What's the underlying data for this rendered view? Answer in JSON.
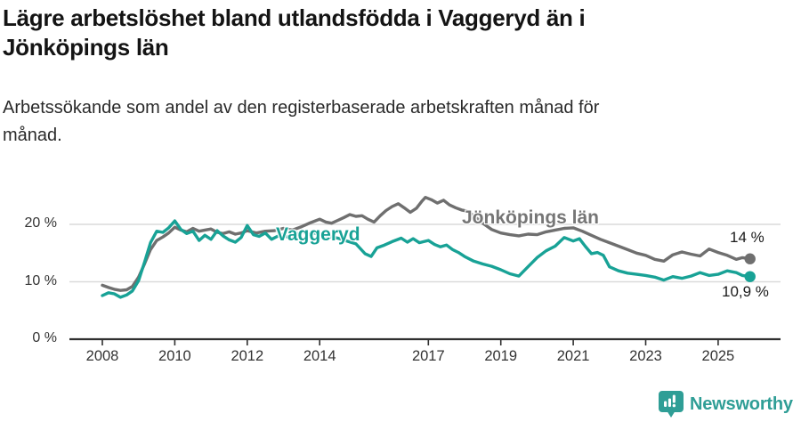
{
  "header": {
    "title_lines": [
      "Lägre arbetslöshet bland utlandsfödda i Vaggeryd än i",
      "Jönköpings län"
    ],
    "subtitle_lines": [
      "Arbetssökande som andel av den registerbaserade arbetskraften månad för",
      "månad."
    ]
  },
  "chart_data": {
    "type": "line",
    "title": "Lägre arbetslöshet bland utlandsfödda i Vaggeryd än i Jönköpings län",
    "subtitle": "Arbetssökande som andel av den registerbaserade arbetskraften månad för månad.",
    "unit": "%",
    "grid": "horizontal",
    "legend_position": "inline-labels",
    "x_axis": {
      "ticks": [
        {
          "year": 2008,
          "label": "2008"
        },
        {
          "year": 2010,
          "label": "2010"
        },
        {
          "year": 2012,
          "label": "2012"
        },
        {
          "year": 2014,
          "label": "2014"
        },
        {
          "year": 2017,
          "label": "2017"
        },
        {
          "year": 2019,
          "label": "2019"
        },
        {
          "year": 2021,
          "label": "2021"
        },
        {
          "year": 2023,
          "label": "2023"
        },
        {
          "year": 2025,
          "label": "2025"
        }
      ],
      "range": [
        2008.0,
        2025.9
      ]
    },
    "y_axis": {
      "ticks": [
        {
          "value": 0,
          "label": "0 %"
        },
        {
          "value": 10,
          "label": "10 %"
        },
        {
          "value": 20,
          "label": "20 %"
        }
      ],
      "range": [
        0,
        26
      ]
    },
    "series": [
      {
        "name": "Jönköpings län",
        "color": "#6f6f6f",
        "end_label": "14 %",
        "end_value": 14.0,
        "points": [
          [
            2008.0,
            9.4
          ],
          [
            2008.17,
            9.0
          ],
          [
            2008.33,
            8.7
          ],
          [
            2008.5,
            8.5
          ],
          [
            2008.67,
            8.6
          ],
          [
            2008.83,
            9.2
          ],
          [
            2009.0,
            10.8
          ],
          [
            2009.17,
            13.2
          ],
          [
            2009.33,
            15.6
          ],
          [
            2009.5,
            17.2
          ],
          [
            2009.67,
            17.8
          ],
          [
            2009.83,
            18.5
          ],
          [
            2010.0,
            19.5
          ],
          [
            2010.17,
            19.0
          ],
          [
            2010.33,
            18.7
          ],
          [
            2010.5,
            19.3
          ],
          [
            2010.67,
            18.8
          ],
          [
            2010.83,
            19.0
          ],
          [
            2011.0,
            19.2
          ],
          [
            2011.17,
            18.6
          ],
          [
            2011.33,
            18.4
          ],
          [
            2011.5,
            18.7
          ],
          [
            2011.67,
            18.3
          ],
          [
            2011.83,
            18.5
          ],
          [
            2012.0,
            18.9
          ],
          [
            2012.25,
            18.5
          ],
          [
            2012.5,
            18.8
          ],
          [
            2012.75,
            18.9
          ],
          [
            2013.0,
            19.3
          ],
          [
            2013.25,
            19.0
          ],
          [
            2013.5,
            19.6
          ],
          [
            2013.75,
            20.3
          ],
          [
            2014.0,
            20.9
          ],
          [
            2014.17,
            20.4
          ],
          [
            2014.33,
            20.2
          ],
          [
            2014.5,
            20.7
          ],
          [
            2014.67,
            21.2
          ],
          [
            2014.83,
            21.7
          ],
          [
            2015.0,
            21.4
          ],
          [
            2015.17,
            21.5
          ],
          [
            2015.33,
            20.9
          ],
          [
            2015.5,
            20.4
          ],
          [
            2015.67,
            21.5
          ],
          [
            2015.83,
            22.4
          ],
          [
            2016.0,
            23.1
          ],
          [
            2016.17,
            23.6
          ],
          [
            2016.33,
            22.9
          ],
          [
            2016.5,
            22.1
          ],
          [
            2016.67,
            22.8
          ],
          [
            2016.83,
            24.1
          ],
          [
            2016.92,
            24.7
          ],
          [
            2017.08,
            24.3
          ],
          [
            2017.25,
            23.7
          ],
          [
            2017.42,
            24.2
          ],
          [
            2017.58,
            23.4
          ],
          [
            2017.75,
            22.9
          ],
          [
            2017.92,
            22.5
          ],
          [
            2018.08,
            22.3
          ],
          [
            2018.25,
            21.5
          ],
          [
            2018.5,
            20.2
          ],
          [
            2018.75,
            19.1
          ],
          [
            2019.0,
            18.5
          ],
          [
            2019.25,
            18.2
          ],
          [
            2019.5,
            18.0
          ],
          [
            2019.75,
            18.3
          ],
          [
            2020.0,
            18.2
          ],
          [
            2020.25,
            18.7
          ],
          [
            2020.5,
            19.0
          ],
          [
            2020.75,
            19.3
          ],
          [
            2021.0,
            19.4
          ],
          [
            2021.25,
            18.8
          ],
          [
            2021.5,
            18.1
          ],
          [
            2021.75,
            17.4
          ],
          [
            2022.0,
            16.8
          ],
          [
            2022.25,
            16.2
          ],
          [
            2022.5,
            15.6
          ],
          [
            2022.75,
            15.0
          ],
          [
            2023.0,
            14.6
          ],
          [
            2023.25,
            13.9
          ],
          [
            2023.5,
            13.6
          ],
          [
            2023.75,
            14.7
          ],
          [
            2024.0,
            15.2
          ],
          [
            2024.25,
            14.8
          ],
          [
            2024.5,
            14.5
          ],
          [
            2024.75,
            15.7
          ],
          [
            2025.0,
            15.1
          ],
          [
            2025.25,
            14.6
          ],
          [
            2025.5,
            13.9
          ],
          [
            2025.67,
            14.2
          ],
          [
            2025.88,
            14.0
          ]
        ]
      },
      {
        "name": "Vaggeryd",
        "color": "#18a296",
        "end_label": "10,9 %",
        "end_value": 10.9,
        "points": [
          [
            2008.0,
            7.6
          ],
          [
            2008.17,
            8.1
          ],
          [
            2008.33,
            7.9
          ],
          [
            2008.5,
            7.3
          ],
          [
            2008.67,
            7.7
          ],
          [
            2008.83,
            8.4
          ],
          [
            2009.0,
            10.2
          ],
          [
            2009.17,
            13.5
          ],
          [
            2009.33,
            16.8
          ],
          [
            2009.5,
            18.8
          ],
          [
            2009.67,
            18.6
          ],
          [
            2009.83,
            19.4
          ],
          [
            2010.0,
            20.6
          ],
          [
            2010.17,
            19.1
          ],
          [
            2010.33,
            18.4
          ],
          [
            2010.5,
            18.8
          ],
          [
            2010.67,
            17.2
          ],
          [
            2010.83,
            18.1
          ],
          [
            2011.0,
            17.4
          ],
          [
            2011.17,
            18.9
          ],
          [
            2011.33,
            18.0
          ],
          [
            2011.5,
            17.3
          ],
          [
            2011.67,
            16.9
          ],
          [
            2011.83,
            17.7
          ],
          [
            2012.0,
            19.8
          ],
          [
            2012.17,
            18.2
          ],
          [
            2012.33,
            17.9
          ],
          [
            2012.5,
            18.5
          ],
          [
            2012.67,
            17.4
          ],
          [
            2012.83,
            17.9
          ],
          [
            2013.0,
            18.3
          ],
          [
            2013.17,
            17.5
          ],
          [
            2013.33,
            18.0
          ],
          [
            2013.5,
            18.9
          ],
          [
            2013.67,
            18.2
          ],
          [
            2013.83,
            18.5
          ],
          [
            2014.0,
            18.3
          ],
          [
            2014.25,
            17.9
          ],
          [
            2014.5,
            17.6
          ],
          [
            2014.75,
            17.1
          ],
          [
            2015.0,
            16.6
          ],
          [
            2015.25,
            14.9
          ],
          [
            2015.42,
            14.4
          ],
          [
            2015.58,
            15.9
          ],
          [
            2015.75,
            16.3
          ],
          [
            2016.0,
            17.0
          ],
          [
            2016.25,
            17.6
          ],
          [
            2016.42,
            16.9
          ],
          [
            2016.58,
            17.5
          ],
          [
            2016.75,
            16.8
          ],
          [
            2017.0,
            17.2
          ],
          [
            2017.17,
            16.5
          ],
          [
            2017.33,
            16.1
          ],
          [
            2017.5,
            16.4
          ],
          [
            2017.67,
            15.6
          ],
          [
            2017.83,
            15.1
          ],
          [
            2018.0,
            14.4
          ],
          [
            2018.25,
            13.6
          ],
          [
            2018.5,
            13.1
          ],
          [
            2018.75,
            12.7
          ],
          [
            2019.0,
            12.1
          ],
          [
            2019.25,
            11.4
          ],
          [
            2019.5,
            11.0
          ],
          [
            2019.75,
            12.6
          ],
          [
            2020.0,
            14.2
          ],
          [
            2020.25,
            15.4
          ],
          [
            2020.5,
            16.2
          ],
          [
            2020.75,
            17.7
          ],
          [
            2021.0,
            17.1
          ],
          [
            2021.17,
            17.5
          ],
          [
            2021.33,
            16.2
          ],
          [
            2021.5,
            14.9
          ],
          [
            2021.67,
            15.1
          ],
          [
            2021.83,
            14.6
          ],
          [
            2022.0,
            12.6
          ],
          [
            2022.25,
            11.9
          ],
          [
            2022.5,
            11.5
          ],
          [
            2022.75,
            11.3
          ],
          [
            2023.0,
            11.1
          ],
          [
            2023.25,
            10.8
          ],
          [
            2023.5,
            10.3
          ],
          [
            2023.75,
            10.9
          ],
          [
            2024.0,
            10.6
          ],
          [
            2024.25,
            11.0
          ],
          [
            2024.5,
            11.6
          ],
          [
            2024.75,
            11.1
          ],
          [
            2025.0,
            11.3
          ],
          [
            2025.25,
            11.9
          ],
          [
            2025.5,
            11.6
          ],
          [
            2025.67,
            11.1
          ],
          [
            2025.88,
            10.9
          ]
        ]
      }
    ],
    "colors": {
      "axis": "#2f2f2f",
      "grid": "#dadada",
      "tick_text": "#333333"
    }
  },
  "footer": {
    "brand": "Newsworthy",
    "brand_color": "#2f9e96"
  }
}
